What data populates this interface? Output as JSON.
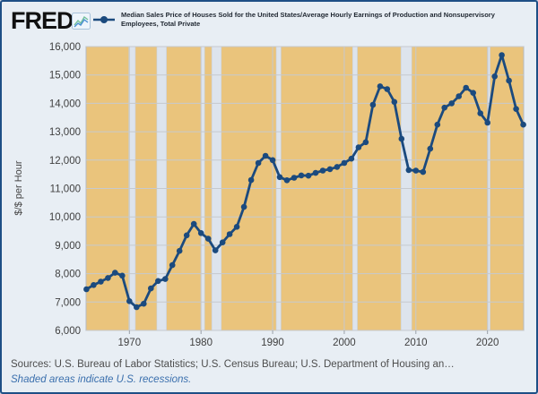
{
  "header": {
    "logo_text": "FRED",
    "reg_mark": "®",
    "legend_label": "Median Sales Price of Houses Sold for the United States/Average Hourly Earnings of Production and Nonsupervisory Employees, Total Private"
  },
  "footer": {
    "sources": "Sources: U.S. Bureau of Labor Statistics; U.S. Census Bureau; U.S. Department of Housing an…",
    "note": "Shaded areas indicate U.S. recessions."
  },
  "chart_data": {
    "type": "line",
    "title": "Median Sales Price of Houses Sold for the United States/Average Hourly Earnings of Production and Nonsupervisory Employees, Total Private",
    "ylabel": "$/$ per Hour",
    "xlabel": "",
    "xlim": [
      1963.95,
      2025.05
    ],
    "ylim": [
      6000,
      16000
    ],
    "x_ticks": [
      1970,
      1980,
      1990,
      2000,
      2010,
      2020
    ],
    "y_ticks": [
      6000,
      7000,
      8000,
      9000,
      10000,
      11000,
      12000,
      13000,
      14000,
      15000,
      16000
    ],
    "grid": true,
    "legend_position": "top",
    "x": [
      1964,
      1965,
      1966,
      1967,
      1968,
      1969,
      1970,
      1971,
      1972,
      1973,
      1974,
      1975,
      1976,
      1977,
      1978,
      1979,
      1980,
      1981,
      1982,
      1983,
      1984,
      1985,
      1986,
      1987,
      1988,
      1989,
      1990,
      1991,
      1992,
      1993,
      1994,
      1995,
      1996,
      1997,
      1998,
      1999,
      2000,
      2001,
      2002,
      2003,
      2004,
      2005,
      2006,
      2007,
      2008,
      2009,
      2010,
      2011,
      2012,
      2013,
      2014,
      2015,
      2016,
      2017,
      2018,
      2019,
      2020,
      2021,
      2022,
      2023,
      2024,
      2025
    ],
    "values": [
      7450,
      7600,
      7720,
      7850,
      8030,
      7930,
      7030,
      6820,
      6940,
      7480,
      7740,
      7810,
      8300,
      8800,
      9350,
      9750,
      9430,
      9230,
      8820,
      9100,
      9390,
      9650,
      10350,
      11300,
      11900,
      12150,
      12000,
      11400,
      11290,
      11380,
      11460,
      11450,
      11550,
      11630,
      11680,
      11760,
      11900,
      12050,
      12450,
      12630,
      13950,
      14600,
      14500,
      14050,
      12750,
      11650,
      11630,
      11580,
      12400,
      13250,
      13850,
      14000,
      14250,
      14550,
      14370,
      13650,
      13320,
      14950,
      15700,
      14800,
      13800,
      13250
    ],
    "recessions": [
      [
        1969.92,
        1970.83
      ],
      [
        1973.83,
        1975.17
      ],
      [
        1980.0,
        1980.5
      ],
      [
        1981.5,
        1982.83
      ],
      [
        1990.5,
        1991.17
      ],
      [
        2001.17,
        2001.83
      ],
      [
        2007.92,
        2009.42
      ],
      [
        2020.08,
        2020.33
      ]
    ],
    "colors": {
      "line": "#1b4a7e",
      "plot_bg": "#eac47c",
      "recession": "#dde4ed",
      "grid": "#c6c9ce",
      "page_bg": "#e8eef4",
      "frame_border": "#1e4f86",
      "axis_text": "#444444",
      "note_blue": "#3a6fad"
    }
  }
}
